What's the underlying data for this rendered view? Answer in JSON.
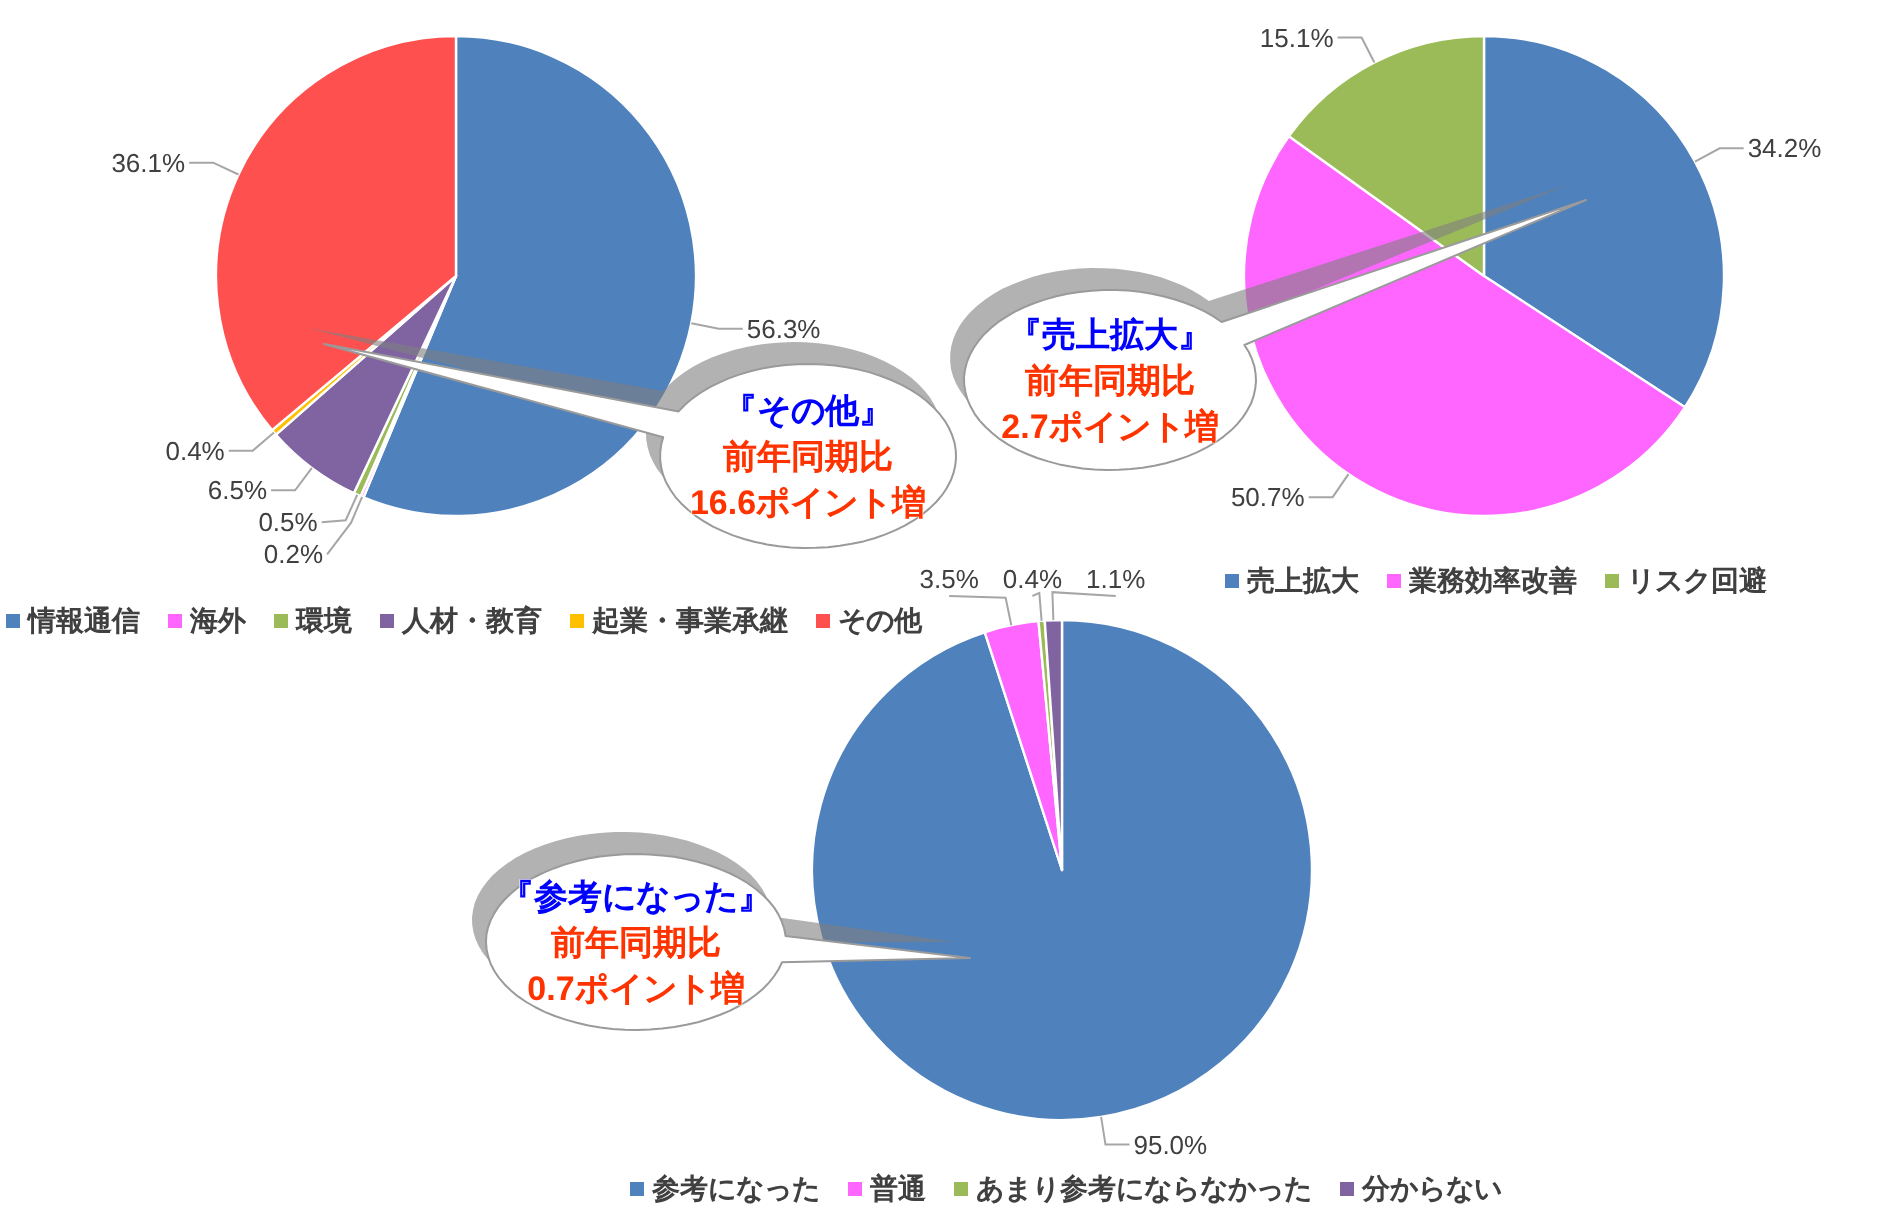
{
  "chart_data": [
    {
      "type": "pie",
      "categories": [
        "情報通信",
        "海外",
        "環境",
        "人材・教育",
        "起業・事業承継",
        "その他"
      ],
      "values": [
        56.3,
        0.2,
        0.5,
        6.5,
        0.4,
        36.1
      ],
      "colors": [
        "#4f81bd",
        "#ff66ff",
        "#9bbb59",
        "#8064a2",
        "#ffc000",
        "#ff5050"
      ],
      "value_labels": [
        "56.3%",
        "0.2%",
        "0.5%",
        "6.5%",
        "0.4%",
        "36.1%"
      ],
      "legend": "bottom",
      "annotations": [
        "『その他』",
        "前年同期比",
        "16.6ポイント増"
      ]
    },
    {
      "type": "pie",
      "categories": [
        "売上拡大",
        "業務効率改善",
        "リスク回避"
      ],
      "values": [
        34.2,
        50.7,
        15.1
      ],
      "colors": [
        "#4f81bd",
        "#ff66ff",
        "#9bbb59"
      ],
      "value_labels": [
        "34.2%",
        "50.7%",
        "15.1%"
      ],
      "legend": "bottom",
      "annotations": [
        "『売上拡大』",
        "前年同期比",
        "2.7ポイント増"
      ]
    },
    {
      "type": "pie",
      "categories": [
        "参考になった",
        "普通",
        "あまり参考にならなかった",
        "分からない"
      ],
      "values": [
        95.0,
        3.5,
        0.4,
        1.1
      ],
      "colors": [
        "#4f81bd",
        "#ff66ff",
        "#9bbb59",
        "#8064a2"
      ],
      "value_labels": [
        "95.0%",
        "3.5%",
        "0.4%",
        "1.1%"
      ],
      "legend": "bottom",
      "annotations": [
        "『参考になった』",
        "前年同期比",
        "0.7ポイント増"
      ]
    }
  ]
}
